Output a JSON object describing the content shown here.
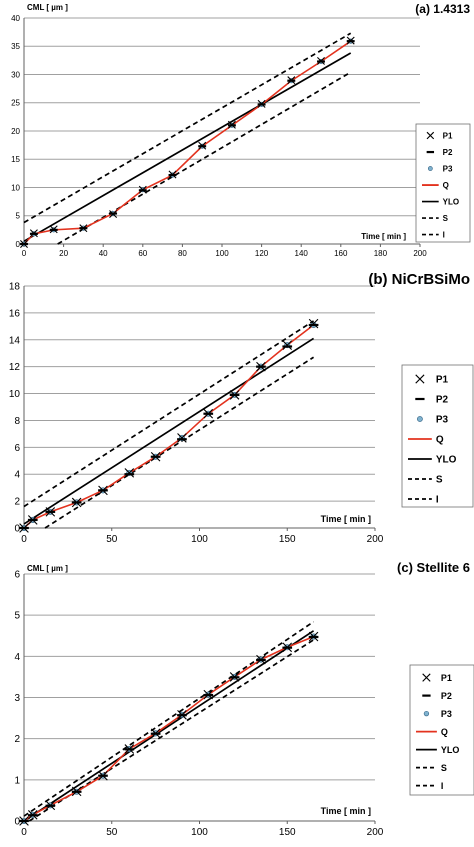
{
  "chart_data": [
    {
      "type": "line",
      "title": "(a) 1.4313",
      "ylabel": "CML [ µm ]",
      "xlabel": "Time [ min ]",
      "xlim": [
        0,
        200
      ],
      "ylim": [
        0,
        40
      ],
      "xticks": [
        "0",
        "20",
        "40",
        "60",
        "80",
        "100",
        "120",
        "140",
        "160",
        "180",
        "200"
      ],
      "yticks": [
        "0",
        "5",
        "10",
        "15",
        "20",
        "25",
        "30",
        "35",
        "40"
      ],
      "grid": "horizontal",
      "legend_position": "right",
      "legend": [
        "P1",
        "P2",
        "P3",
        "Q",
        "YLO",
        "S",
        "I"
      ],
      "x": [
        0,
        5,
        15,
        30,
        45,
        60,
        75,
        90,
        105,
        120,
        135,
        150,
        165
      ],
      "series": [
        {
          "name": "P1",
          "values": [
            0,
            1.9,
            2.6,
            2.8,
            5.3,
            9.6,
            12.3,
            17.4,
            21.1,
            24.8,
            29.0,
            32.4,
            36.0
          ]
        },
        {
          "name": "P2",
          "values": [
            0,
            1.8,
            2.5,
            2.8,
            5.4,
            9.5,
            12.2,
            17.3,
            21.0,
            24.7,
            28.9,
            32.3,
            35.9
          ]
        },
        {
          "name": "P3",
          "values": [
            0,
            1.8,
            2.5,
            2.8,
            5.4,
            9.6,
            12.2,
            17.3,
            21.0,
            24.7,
            28.9,
            32.3,
            35.9
          ]
        },
        {
          "name": "Q",
          "values": [
            0,
            1.8,
            2.5,
            2.8,
            5.4,
            9.6,
            12.2,
            17.3,
            21.0,
            24.7,
            28.9,
            32.3,
            35.9
          ]
        }
      ],
      "lines": [
        {
          "name": "YLO",
          "x": [
            0,
            165
          ],
          "y": [
            0.5,
            33.8
          ]
        },
        {
          "name": "S",
          "x": [
            0,
            165
          ],
          "y": [
            3.8,
            37.3
          ]
        },
        {
          "name": "I",
          "x": [
            17,
            165
          ],
          "y": [
            0,
            30.4
          ]
        }
      ],
      "colors": {
        "Q": "#e3321e",
        "P3": "#7fb2cf",
        "marks": "#000000",
        "grid": "#a0a0a0"
      }
    },
    {
      "type": "line",
      "title": "(b) NiCrBSiMo",
      "ylabel": "CML [ µm ]",
      "xlabel": "Time [ min ]",
      "xlim": [
        0,
        200
      ],
      "ylim": [
        0,
        18
      ],
      "xticks": [
        "0",
        "50",
        "100",
        "150",
        "200"
      ],
      "yticks": [
        "0",
        "2",
        "4",
        "6",
        "8",
        "10",
        "12",
        "14",
        "16",
        "18"
      ],
      "grid": "horizontal",
      "legend_position": "right",
      "legend": [
        "P1",
        "P2",
        "P3",
        "Q",
        "YLO",
        "S",
        "I"
      ],
      "x": [
        0,
        5,
        15,
        30,
        45,
        60,
        75,
        90,
        105,
        120,
        135,
        150,
        165
      ],
      "series": [
        {
          "name": "P1",
          "values": [
            0,
            0.6,
            1.2,
            1.9,
            2.8,
            4.1,
            5.3,
            6.7,
            8.5,
            9.9,
            12.0,
            13.6,
            15.2
          ]
        },
        {
          "name": "P2",
          "values": [
            0,
            0.6,
            1.2,
            1.9,
            2.8,
            4.0,
            5.3,
            6.6,
            8.5,
            9.9,
            12.0,
            13.5,
            15.1
          ]
        },
        {
          "name": "P3",
          "values": [
            0,
            0.6,
            1.2,
            1.9,
            2.8,
            4.1,
            5.3,
            6.7,
            8.5,
            9.9,
            12.0,
            13.6,
            15.1
          ]
        },
        {
          "name": "Q",
          "values": [
            0,
            0.6,
            1.2,
            1.9,
            2.8,
            4.1,
            5.3,
            6.7,
            8.5,
            9.9,
            12.0,
            13.6,
            15.1
          ]
        }
      ],
      "lines": [
        {
          "name": "YLO",
          "x": [
            0,
            165
          ],
          "y": [
            0.3,
            14.1
          ]
        },
        {
          "name": "S",
          "x": [
            0,
            165
          ],
          "y": [
            1.6,
            15.4
          ]
        },
        {
          "name": "I",
          "x": [
            12,
            165
          ],
          "y": [
            0,
            12.7
          ]
        }
      ],
      "colors": {
        "Q": "#e3321e",
        "P3": "#7fb2cf",
        "marks": "#000000",
        "grid": "#a0a0a0"
      }
    },
    {
      "type": "line",
      "title": "(c) Stellite 6",
      "ylabel": "CML [ µm ]",
      "xlabel": "Time [ min ]",
      "xlim": [
        0,
        200
      ],
      "ylim": [
        0,
        6
      ],
      "xticks": [
        "0",
        "50",
        "100",
        "150",
        "200"
      ],
      "yticks": [
        "0",
        "1",
        "2",
        "3",
        "4",
        "5",
        "6"
      ],
      "grid": "horizontal",
      "legend_position": "right",
      "legend": [
        "P1",
        "P2",
        "P3",
        "Q",
        "YLO",
        "S",
        "I"
      ],
      "x": [
        0,
        5,
        15,
        30,
        45,
        60,
        75,
        90,
        105,
        120,
        135,
        150,
        165
      ],
      "series": [
        {
          "name": "P1",
          "values": [
            0,
            0.15,
            0.38,
            0.72,
            1.1,
            1.75,
            2.13,
            2.58,
            3.07,
            3.5,
            3.92,
            4.22,
            4.48
          ]
        },
        {
          "name": "P2",
          "values": [
            0,
            0.14,
            0.37,
            0.71,
            1.1,
            1.74,
            2.12,
            2.57,
            3.06,
            3.49,
            3.91,
            4.21,
            4.47
          ]
        },
        {
          "name": "P3",
          "values": [
            0,
            0.15,
            0.38,
            0.71,
            1.1,
            1.75,
            2.13,
            2.58,
            3.07,
            3.5,
            3.92,
            4.22,
            4.48
          ]
        },
        {
          "name": "Q",
          "values": [
            0,
            0.15,
            0.38,
            0.71,
            1.1,
            1.75,
            2.13,
            2.58,
            3.07,
            3.5,
            3.92,
            4.22,
            4.48
          ]
        }
      ],
      "lines": [
        {
          "name": "YLO",
          "x": [
            0,
            165
          ],
          "y": [
            0.0,
            4.62
          ]
        },
        {
          "name": "S",
          "x": [
            0,
            165
          ],
          "y": [
            0.12,
            4.84
          ]
        },
        {
          "name": "I",
          "x": [
            3,
            165
          ],
          "y": [
            0,
            4.4
          ]
        }
      ],
      "colors": {
        "Q": "#e3321e",
        "P3": "#7fb2cf",
        "marks": "#000000",
        "grid": "#a0a0a0"
      }
    }
  ]
}
